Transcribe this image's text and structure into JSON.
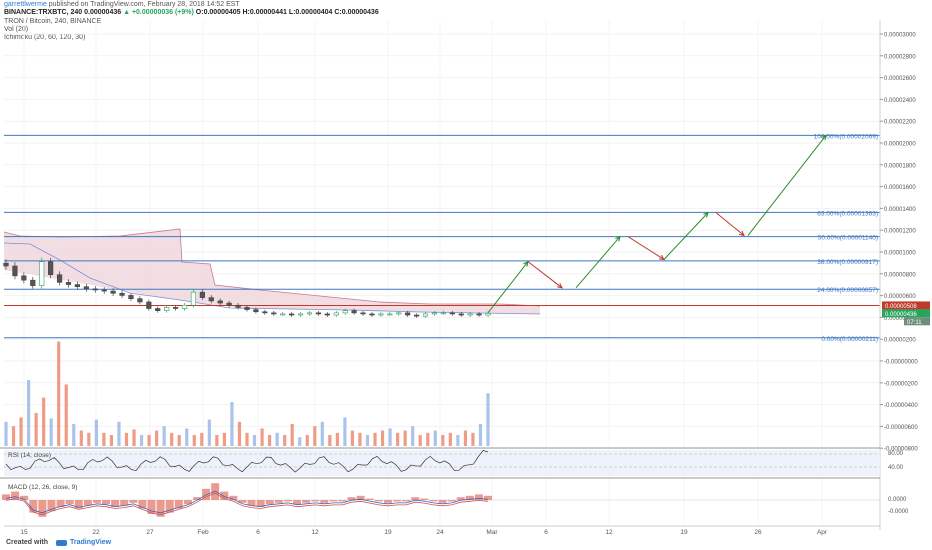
{
  "header": {
    "author": "garrettlwerme",
    "publish_text": "published on TradingView.com, February 28, 2018 14:52 EST",
    "quote_prefix": "BINANCE:TRXBTC, 240",
    "quote_last": "0.00000436",
    "quote_change": "▲ +0.00000036 (+9%)",
    "quote_ohlc": "O:0.00000405 H:0.00000441 L:0.00000404 C:0.00000436",
    "study_title": "TRON / Bitcoin, 240, BINANCE",
    "study_vol": "Vol (20)",
    "study_ichimoku": "Ichimoku (20, 60, 120, 30)"
  },
  "footer": {
    "created": "Created with",
    "brand": "TradingView"
  },
  "chart_data": {
    "type": "candlestick",
    "symbol": "TRXBTC",
    "x_ticks": [
      "15",
      "22",
      "27",
      "Feb",
      "6",
      "12",
      "19",
      "24",
      "Mar",
      "6",
      "12",
      "19",
      "26",
      "Apr"
    ],
    "price_ticks": [
      "0.00003000",
      "0.00002800",
      "0.00002600",
      "0.00002400",
      "0.00002200",
      "0.00002000",
      "0.00001800",
      "0.00001600",
      "0.00001400",
      "0.00001200",
      "0.00001000",
      "0.00000800",
      "0.00000600",
      "0.00000400",
      "0.00000200",
      "-0.00000000",
      "-0.00000200",
      "-0.00000400",
      "-0.00000600",
      "-0.00000800"
    ],
    "current_price_label": "0.00000436",
    "current_time_label": "07:11",
    "red_level_label": "0.00000508",
    "fib_levels": [
      {
        "label": "100.00%(0.00002069)",
        "value": 2.069e-05
      },
      {
        "label": "63.00%(0.00001363)",
        "value": 1.363e-05
      },
      {
        "label": "50.00%(0.00001140)",
        "value": 1.14e-05
      },
      {
        "label": "38.00%(0.00000917)",
        "value": 9.17e-06
      },
      {
        "label": "24.00%(0.00000657)",
        "value": 6.57e-06
      },
      {
        "label": "0.00%(0.00000211)",
        "value": 2.11e-06
      }
    ],
    "red_level": 5.08e-06,
    "close_series": [
      8.7e-06,
      7.8e-06,
      7.4e-06,
      6.9e-06,
      9.1e-06,
      7.9e-06,
      7.2e-06,
      7e-06,
      6.8e-06,
      6.6e-06,
      6.5e-06,
      6.4e-06,
      6.2e-06,
      6e-06,
      5.7e-06,
      5.4e-06,
      4.8e-06,
      4.6e-06,
      4.9e-06,
      4.8e-06,
      5.1e-06,
      6.3e-06,
      5.8e-06,
      5.5e-06,
      5.3e-06,
      5.1e-06,
      4.9e-06,
      4.7e-06,
      4.5e-06,
      4.4e-06,
      4.3e-06,
      4.3e-06,
      4.2e-06,
      4.3e-06,
      4.4e-06,
      4.3e-06,
      4.2e-06,
      4.4e-06,
      4.6e-06,
      4.4e-06,
      4.3e-06,
      4.2e-06,
      4.3e-06,
      4.3e-06,
      4.4e-06,
      4.2e-06,
      4.1e-06,
      4.3e-06,
      4.4e-06,
      4.4e-06,
      4.3e-06,
      4.2e-06,
      4.3e-06,
      4.2e-06,
      4.36e-06
    ],
    "projection_arrows": [
      {
        "from": 4.4e-06,
        "to": 9.1e-06,
        "color": "#2e8b2e"
      },
      {
        "from": 9.1e-06,
        "to": 6.7e-06,
        "color": "#c0392b"
      },
      {
        "from": 6.7e-06,
        "to": 1.14e-05,
        "color": "#2e8b2e"
      },
      {
        "from": 1.14e-05,
        "to": 9.3e-06,
        "color": "#c0392b"
      },
      {
        "from": 9.3e-06,
        "to": 1.36e-05,
        "color": "#2e8b2e"
      },
      {
        "from": 1.36e-05,
        "to": 1.15e-05,
        "color": "#c0392b"
      },
      {
        "from": 1.15e-05,
        "to": 2.07e-05,
        "color": "#2e8b2e"
      }
    ],
    "volume_series": [
      22,
      18,
      26,
      60,
      30,
      44,
      25,
      95,
      56,
      20,
      14,
      12,
      24,
      12,
      10,
      22,
      12,
      15,
      10,
      10,
      14,
      18,
      12,
      10,
      16,
      10,
      12,
      24,
      10,
      12,
      40,
      22,
      12,
      10,
      16,
      10,
      12,
      10,
      20,
      8,
      10,
      18,
      22,
      10,
      12,
      26,
      14,
      12,
      10,
      12,
      14,
      16,
      12,
      14,
      18,
      10,
      12,
      14,
      10,
      12,
      10,
      14,
      12,
      20,
      48
    ],
    "rsi": {
      "label": "RSI (14, close)",
      "ticks": [
        "80.00",
        "40.00"
      ]
    },
    "macd": {
      "label": "MACD (12, 26, close, 9)",
      "ticks": [
        "0.0000",
        "-0.0000"
      ]
    },
    "colors": {
      "up": "#26a65b",
      "down": "#e0504b",
      "fib": "#3e78c4",
      "cloud": "#f0d9df",
      "axis": "#888888"
    }
  }
}
